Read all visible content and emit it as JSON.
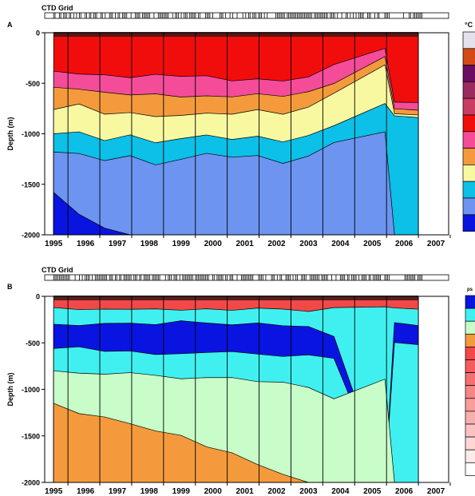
{
  "chart_data": [
    {
      "type": "heatmap",
      "panel_label": "A",
      "grid_label": "CTD Grid",
      "legend_title": "°C",
      "ylabel": "Depth (m)",
      "xlabel": "",
      "x_ticks": [
        "1995",
        "1996",
        "1997",
        "1998",
        "1999",
        "2000",
        "2001",
        "2002",
        "2003",
        "2004",
        "2005",
        "2006",
        "2007"
      ],
      "y_ticks": [
        0,
        -500,
        -1000,
        -1500,
        -2000
      ],
      "xlim": [
        1995,
        2007
      ],
      "ylim": [
        -2000,
        0
      ],
      "legend_colors": [
        "#e4e1ec",
        "#d44a14",
        "#6b0b63",
        "#9c2a5e",
        "#c83c64",
        "#f20d0d",
        "#f44c98",
        "#f49a3c",
        "#f8f8a0",
        "#0cc0e8",
        "#6c94f0",
        "#0a14e0"
      ],
      "layers": [
        {
          "color": "#f20d0d",
          "depth": [
            0,
            0,
            0,
            0,
            0,
            0,
            0,
            0,
            0,
            0,
            0,
            0,
            0,
            0,
            0
          ]
        },
        {
          "color": "#f44c98",
          "depth": [
            -380,
            -400,
            -420,
            -430,
            -420,
            -450,
            -430,
            -470,
            -450,
            -480,
            -440,
            -300,
            -150,
            -700,
            -700
          ]
        },
        {
          "color": "#f49a3c",
          "depth": [
            -540,
            -560,
            -590,
            -620,
            -600,
            -620,
            -610,
            -630,
            -620,
            -640,
            -600,
            -500,
            -250,
            -750,
            -750
          ]
        },
        {
          "color": "#f8f8a0",
          "depth": [
            -760,
            -720,
            -800,
            -780,
            -820,
            -800,
            -790,
            -800,
            -780,
            -820,
            -740,
            -600,
            -300,
            -800,
            -800
          ]
        },
        {
          "color": "#0cc0e8",
          "depth": [
            -1000,
            -980,
            -1060,
            -1000,
            -1090,
            -1050,
            -1000,
            -1060,
            -1030,
            -1080,
            -1000,
            -900,
            -700,
            -820,
            -820
          ]
        },
        {
          "color": "#6c94f0",
          "depth": [
            -1180,
            -1200,
            -1250,
            -1200,
            -1300,
            -1250,
            -1200,
            -1250,
            -1230,
            -1280,
            -1200,
            -1100,
            -1000,
            -2000,
            -2000
          ]
        },
        {
          "color": "#0a14e0",
          "depth": [
            -1580,
            -1800,
            -1950,
            -2000,
            -2000,
            -2000,
            -2000,
            -2000,
            -2000,
            -2000,
            -2000,
            -2000,
            -2000,
            -2000,
            -2000
          ]
        }
      ],
      "layer_x": [
        1995.0,
        1995.8,
        1996.6,
        1997.4,
        1998.2,
        1999.0,
        1999.8,
        2000.6,
        2001.4,
        2002.2,
        2003.0,
        2003.8,
        2005.4,
        2005.7,
        2006.45
      ]
    },
    {
      "type": "heatmap",
      "panel_label": "B",
      "grid_label": "CTD Grid",
      "legend_title": "ps",
      "ylabel": "Depth (m)",
      "xlabel": "",
      "x_ticks": [
        "1995",
        "1996",
        "1997",
        "1998",
        "1999",
        "2000",
        "2001",
        "2002",
        "2003",
        "2004",
        "2005",
        "2006",
        "2007"
      ],
      "y_ticks": [
        0,
        -500,
        -1000,
        -1500,
        -2000
      ],
      "xlim": [
        1995,
        2007
      ],
      "ylim": [
        -2000,
        0
      ],
      "legend_colors": [
        "#0a14e0",
        "#40f0f0",
        "#c8fcc8",
        "#f49a3c",
        "#f24848",
        "#f45c5c",
        "#f47070",
        "#f68686",
        "#f89c9c",
        "#faaeae",
        "#fcc2c2",
        "#fdd6d6",
        "#ffeaea",
        "#ffffff"
      ],
      "layers": [
        {
          "color": "#f24848",
          "depth": [
            0,
            0,
            0,
            0,
            0,
            0,
            0,
            0,
            0,
            0,
            0,
            0,
            0,
            0,
            0
          ]
        },
        {
          "color": "#40f0f0",
          "depth": [
            -120,
            -140,
            -130,
            -150,
            -140,
            -150,
            -140,
            -150,
            -140,
            -150,
            -160,
            -130,
            -120,
            -140,
            -140
          ]
        },
        {
          "color": "#0a14e0",
          "depth": [
            -300,
            -320,
            -280,
            -300,
            -290,
            -280,
            -300,
            -310,
            -280,
            -300,
            -320,
            -450,
            -2000,
            -300,
            -300
          ]
        },
        {
          "color": "#40f0f0",
          "depth": [
            -560,
            -560,
            -600,
            -580,
            -620,
            -600,
            -620,
            -600,
            -620,
            -640,
            -620,
            -660,
            -2000,
            -500,
            -500
          ]
        },
        {
          "color": "#c8fcc8",
          "depth": [
            -800,
            -820,
            -820,
            -840,
            -860,
            -870,
            -880,
            -880,
            -900,
            -920,
            -980,
            -1100,
            -900,
            -2000,
            -2000
          ]
        },
        {
          "color": "#f49a3c",
          "depth": [
            -1150,
            -1280,
            -1300,
            -1350,
            -1450,
            -1500,
            -1600,
            -1700,
            -1800,
            -1900,
            -2000,
            -2000,
            -2000,
            -2000,
            -2000
          ]
        }
      ],
      "layer_x": [
        1995.0,
        1995.8,
        1996.6,
        1997.4,
        1998.2,
        1999.0,
        1999.8,
        2000.6,
        2001.4,
        2002.2,
        2003.0,
        2003.8,
        2005.4,
        2005.7,
        2006.45
      ]
    }
  ]
}
